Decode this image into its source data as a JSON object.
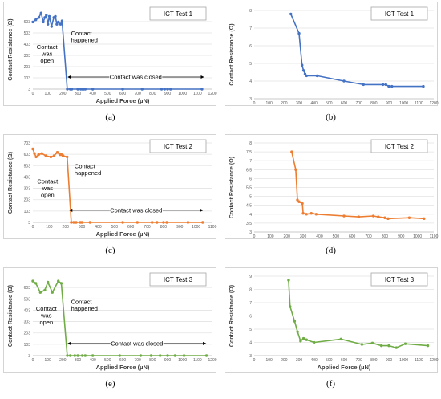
{
  "chart_data": [
    {
      "id": "a",
      "caption": "(a)",
      "type": "line",
      "title": "ICT Test 1",
      "color": "#4472c4",
      "xlabel": "Applied Force (µN)",
      "ylabel": "Contact Resistance (Ω)",
      "xlim": [
        0,
        1200
      ],
      "xticks": [
        "0",
        "100",
        "200",
        "300",
        "400",
        "500",
        "600",
        "700",
        "800",
        "900",
        "1000",
        "1100",
        "1200"
      ],
      "yticks": [
        "3",
        "103",
        "203",
        "303",
        "403",
        "503",
        "603"
      ],
      "ylim": [
        3,
        703
      ],
      "annotations": {
        "open": "Contact was open",
        "happened": "Contact happened",
        "closed": "Contact was closed"
      },
      "arrow_range": [
        235,
        1140
      ],
      "arrow_y": 110,
      "open_pos": [
        95,
        360
      ],
      "happened_pos": [
        255,
        480
      ],
      "points": [
        [
          0,
          600
        ],
        [
          20,
          620
        ],
        [
          40,
          640
        ],
        [
          55,
          680
        ],
        [
          70,
          600
        ],
        [
          80,
          640
        ],
        [
          90,
          660
        ],
        [
          100,
          580
        ],
        [
          110,
          650
        ],
        [
          125,
          560
        ],
        [
          140,
          640
        ],
        [
          150,
          650
        ],
        [
          160,
          580
        ],
        [
          170,
          600
        ],
        [
          185,
          580
        ],
        [
          195,
          610
        ],
        [
          230,
          3
        ],
        [
          250,
          3
        ],
        [
          260,
          3
        ],
        [
          300,
          3
        ],
        [
          320,
          3
        ],
        [
          330,
          3
        ],
        [
          340,
          3
        ],
        [
          350,
          3
        ],
        [
          400,
          3
        ],
        [
          600,
          3
        ],
        [
          730,
          3
        ],
        [
          860,
          3
        ],
        [
          880,
          3
        ],
        [
          900,
          3
        ],
        [
          920,
          3
        ],
        [
          1130,
          3
        ]
      ]
    },
    {
      "id": "b",
      "caption": "(b)",
      "type": "line",
      "title": "ICT Test 1",
      "color": "#4472c4",
      "xlabel": "",
      "ylabel": "Contact Resistance (Ω)",
      "xlim": [
        0,
        1200
      ],
      "xticks": [
        "0",
        "100",
        "200",
        "300",
        "400",
        "500",
        "600",
        "700",
        "800",
        "900",
        "1000",
        "1100",
        "1200"
      ],
      "yticks": [
        "3",
        "4",
        "5",
        "6",
        "7",
        "8"
      ],
      "ylim": [
        3,
        8
      ],
      "points": [
        [
          245,
          7.8
        ],
        [
          300,
          6.7
        ],
        [
          320,
          4.9
        ],
        [
          330,
          4.6
        ],
        [
          340,
          4.4
        ],
        [
          350,
          4.3
        ],
        [
          420,
          4.3
        ],
        [
          600,
          4.0
        ],
        [
          730,
          3.8
        ],
        [
          860,
          3.8
        ],
        [
          880,
          3.8
        ],
        [
          900,
          3.7
        ],
        [
          920,
          3.7
        ],
        [
          1130,
          3.7
        ]
      ]
    },
    {
      "id": "c",
      "caption": "(c)",
      "type": "line",
      "title": "ICT Test 2",
      "color": "#ed7d31",
      "xlabel": "Applied Force (µN)",
      "ylabel": "Contact Resistance (Ω)",
      "xlim": [
        0,
        1100
      ],
      "xticks": [
        "0",
        "100",
        "200",
        "300",
        "400",
        "500",
        "600",
        "700",
        "800",
        "900",
        "1000",
        "1100"
      ],
      "yticks": [
        "3",
        "103",
        "203",
        "303",
        "403",
        "503",
        "603",
        "703"
      ],
      "ylim": [
        3,
        703
      ],
      "annotations": {
        "open": "Contact was open",
        "happened": "Contact happened",
        "closed": "Contact was closed"
      },
      "arrow_range": [
        225,
        1040
      ],
      "arrow_y": 110,
      "open_pos": [
        90,
        345
      ],
      "happened_pos": [
        255,
        480
      ],
      "points": [
        [
          0,
          650
        ],
        [
          10,
          610
        ],
        [
          20,
          580
        ],
        [
          35,
          600
        ],
        [
          55,
          610
        ],
        [
          80,
          590
        ],
        [
          110,
          580
        ],
        [
          130,
          590
        ],
        [
          150,
          620
        ],
        [
          165,
          600
        ],
        [
          175,
          600
        ],
        [
          185,
          590
        ],
        [
          210,
          580
        ],
        [
          235,
          3
        ],
        [
          250,
          3
        ],
        [
          265,
          3
        ],
        [
          290,
          3
        ],
        [
          300,
          3
        ],
        [
          350,
          3
        ],
        [
          550,
          3
        ],
        [
          640,
          3
        ],
        [
          730,
          3
        ],
        [
          760,
          3
        ],
        [
          800,
          3
        ],
        [
          820,
          3
        ],
        [
          950,
          3
        ],
        [
          1040,
          3
        ]
      ]
    },
    {
      "id": "d",
      "caption": "(d)",
      "type": "line",
      "title": "ICT Test 2",
      "color": "#ed7d31",
      "xlabel": "",
      "ylabel": "Contact Resistance (Ω)",
      "xlim": [
        0,
        1100
      ],
      "xticks": [
        "0",
        "100",
        "200",
        "300",
        "400",
        "500",
        "600",
        "700",
        "800",
        "900",
        "1000",
        "1100"
      ],
      "yticks": [
        "3",
        "3.5",
        "4",
        "4.5",
        "5",
        "5.5",
        "6",
        "6.5",
        "7",
        "7.5",
        "8"
      ],
      "ylim": [
        3,
        8
      ],
      "points": [
        [
          230,
          7.5
        ],
        [
          255,
          6.5
        ],
        [
          265,
          4.8
        ],
        [
          275,
          4.7
        ],
        [
          295,
          4.6
        ],
        [
          300,
          4.05
        ],
        [
          320,
          4.0
        ],
        [
          350,
          4.05
        ],
        [
          380,
          4.0
        ],
        [
          550,
          3.9
        ],
        [
          640,
          3.85
        ],
        [
          730,
          3.9
        ],
        [
          760,
          3.85
        ],
        [
          800,
          3.8
        ],
        [
          820,
          3.75
        ],
        [
          950,
          3.8
        ],
        [
          1040,
          3.75
        ]
      ]
    },
    {
      "id": "e",
      "caption": "(e)",
      "type": "line",
      "title": "ICT Test 3",
      "color": "#70ad47",
      "xlabel": "Applied Force (µN)",
      "ylabel": "Contact Resistance (Ω)",
      "xlim": [
        0,
        1200
      ],
      "xticks": [
        "0",
        "100",
        "200",
        "300",
        "400",
        "500",
        "600",
        "700",
        "800",
        "900",
        "1000",
        "1100",
        "1200"
      ],
      "yticks": [
        "3",
        "103",
        "203",
        "303",
        "403",
        "503",
        "603"
      ],
      "ylim": [
        3,
        703
      ],
      "annotations": {
        "open": "Contact was open",
        "happened": "Contact happened",
        "closed": "Contact was closed"
      },
      "arrow_range": [
        235,
        1155
      ],
      "arrow_y": 110,
      "open_pos": [
        90,
        400
      ],
      "happened_pos": [
        255,
        460
      ],
      "points": [
        [
          0,
          660
        ],
        [
          20,
          640
        ],
        [
          50,
          560
        ],
        [
          80,
          580
        ],
        [
          100,
          650
        ],
        [
          130,
          560
        ],
        [
          170,
          660
        ],
        [
          190,
          640
        ],
        [
          230,
          3
        ],
        [
          250,
          3
        ],
        [
          280,
          3
        ],
        [
          300,
          3
        ],
        [
          330,
          3
        ],
        [
          350,
          3
        ],
        [
          400,
          3
        ],
        [
          580,
          3
        ],
        [
          720,
          3
        ],
        [
          790,
          3
        ],
        [
          850,
          3
        ],
        [
          900,
          3
        ],
        [
          950,
          3
        ],
        [
          1010,
          3
        ],
        [
          1160,
          3
        ]
      ]
    },
    {
      "id": "f",
      "caption": "(f)",
      "type": "line",
      "title": "ICT Test 3",
      "color": "#70ad47",
      "xlabel": "Applied Force (µN)",
      "ylabel": "Contact Resistance (Ω)",
      "xlim": [
        0,
        1200
      ],
      "xticks": [
        "0",
        "100",
        "200",
        "300",
        "400",
        "500",
        "600",
        "700",
        "800",
        "900",
        "1000",
        "1100",
        "1200"
      ],
      "yticks": [
        "3",
        "4",
        "5",
        "6",
        "7",
        "8",
        "9"
      ],
      "ylim": [
        3,
        9
      ],
      "points": [
        [
          230,
          8.7
        ],
        [
          240,
          6.7
        ],
        [
          270,
          5.6
        ],
        [
          290,
          4.8
        ],
        [
          310,
          4.1
        ],
        [
          330,
          4.3
        ],
        [
          350,
          4.2
        ],
        [
          400,
          4.0
        ],
        [
          580,
          4.25
        ],
        [
          720,
          3.85
        ],
        [
          790,
          3.95
        ],
        [
          850,
          3.75
        ],
        [
          900,
          3.75
        ],
        [
          950,
          3.6
        ],
        [
          1010,
          3.9
        ],
        [
          1160,
          3.75
        ]
      ]
    }
  ]
}
